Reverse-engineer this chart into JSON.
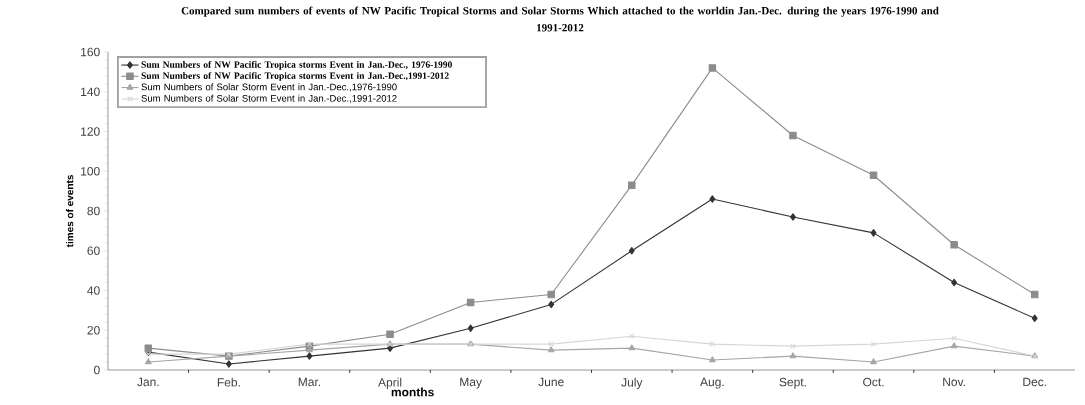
{
  "chart_data": {
    "type": "line",
    "title": "Compared sum  numbers of events of NW Pacific Tropical Storms and Solar Storms  Which attached to the worldin Jan.-Dec. during the years 1976-1990 and 1991-2012",
    "xlabel": "months",
    "ylabel": "times of events",
    "categories": [
      "Jan.",
      "Feb.",
      "Mar.",
      "April",
      "May",
      "June",
      "July",
      "Aug.",
      "Sept.",
      "Oct.",
      "Nov.",
      "Dec."
    ],
    "ylim": [
      0,
      160
    ],
    "yticks": [
      0,
      20,
      40,
      60,
      80,
      100,
      120,
      140,
      160
    ],
    "legend": "top left",
    "grid": false,
    "series": [
      {
        "name": "Sum Numbers of NW Pacific Tropica storms Event in Jan.-Dec., 1976-1990",
        "color": "#333333",
        "marker": "diamond",
        "values": [
          9,
          3,
          7,
          11,
          21,
          33,
          60,
          86,
          77,
          69,
          44,
          26
        ]
      },
      {
        "name": "Sum Numbers of NW Pacific Tropica storms Event in Jan.-Dec.,1991-2012",
        "color": "#8c8c8c",
        "marker": "square",
        "values": [
          11,
          7,
          12,
          18,
          34,
          38,
          93,
          152,
          118,
          98,
          63,
          38
        ]
      },
      {
        "name": "Sum Numbers of Solar Storm Event in Jan.-Dec.,1976-1990",
        "color": "#a6a6a6",
        "marker": "triangle",
        "values": [
          4,
          7,
          10,
          13,
          13,
          10,
          11,
          5,
          7,
          4,
          12,
          7
        ]
      },
      {
        "name": "Sum Numbers of Solar Storm Event in Jan.-Dec.,1991-2012",
        "color": "#d6d6d6",
        "marker": "cross",
        "values": [
          8,
          8,
          13,
          13,
          13,
          13,
          17,
          13,
          12,
          13,
          16,
          7
        ]
      }
    ]
  }
}
